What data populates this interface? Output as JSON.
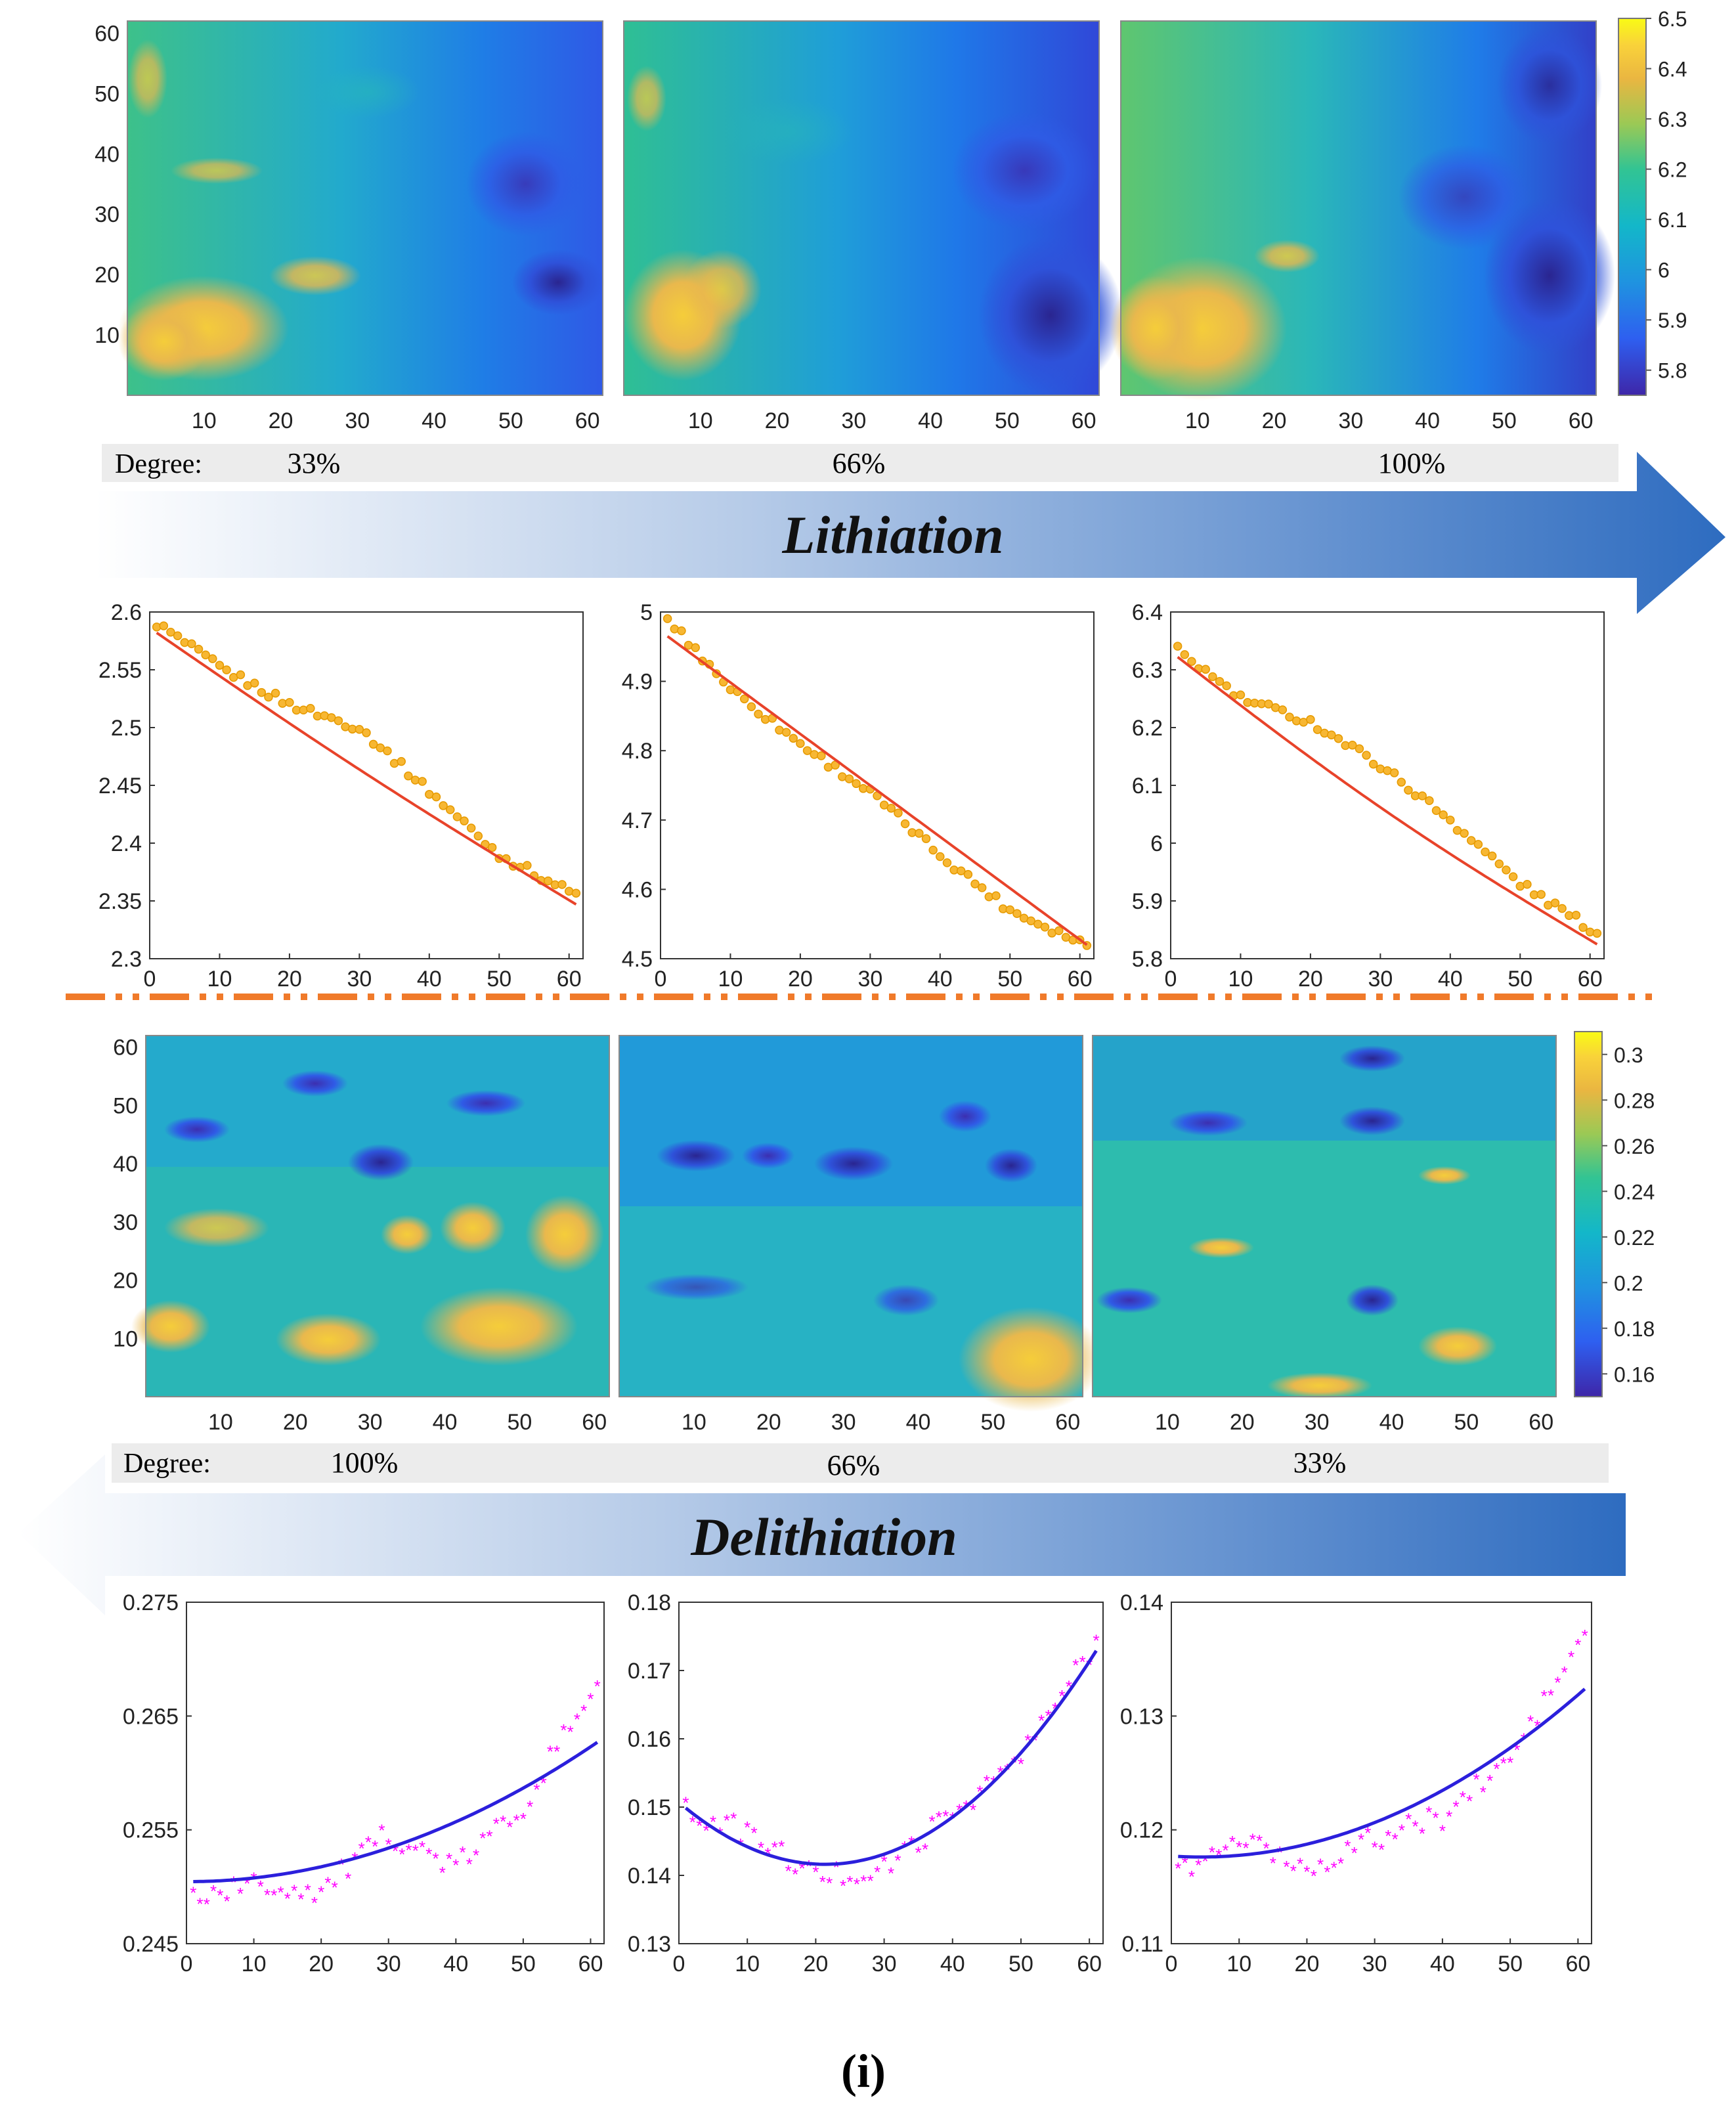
{
  "lithiation": {
    "degree_label": "Degree:",
    "degrees": [
      "33%",
      "66%",
      "100%"
    ],
    "banner": "Lithiation",
    "colorbar": {
      "ticks": [
        "6.5",
        "6.4",
        "6.3",
        "6.2",
        "6.1",
        "6",
        "5.9",
        "5.8"
      ],
      "min": 5.75,
      "max": 6.5
    },
    "map_ticks": {
      "x": [
        "10",
        "20",
        "30",
        "40",
        "50",
        "60"
      ],
      "y": [
        "60",
        "50",
        "40",
        "30",
        "20",
        "10"
      ]
    }
  },
  "delithiation": {
    "degree_label": "Degree:",
    "degrees": [
      "100%",
      "66%",
      "33%"
    ],
    "banner": "Delithiation",
    "colorbar": {
      "ticks": [
        "0.3",
        "0.28",
        "0.26",
        "0.24",
        "0.22",
        "0.2",
        "0.18",
        "0.16"
      ],
      "min": 0.15,
      "max": 0.31
    },
    "map_ticks": {
      "x": [
        "10",
        "20",
        "30",
        "40",
        "50",
        "60"
      ],
      "y": [
        "60",
        "50",
        "40",
        "30",
        "20",
        "10"
      ]
    }
  },
  "caption": "(i)",
  "colors": {
    "line_fit": "#e8432a",
    "points_lith": "#f2a900",
    "line_delith": "#2b1fdc",
    "points_delith": "#ff00ff",
    "arrow": "#3570c0",
    "separator": "#f07a2a"
  },
  "chart_data": [
    {
      "type": "scatter",
      "panel": "lithiation-33",
      "x": [
        1,
        10,
        20,
        30,
        40,
        50,
        61
      ],
      "y": [
        2.59,
        2.552,
        2.52,
        2.5,
        2.445,
        2.39,
        2.355
      ],
      "fit": {
        "start": 2.582,
        "end": 2.347,
        "curve": 0.02
      },
      "xlim": [
        0,
        62
      ],
      "ylim": [
        2.3,
        2.6
      ],
      "xticks": [
        "0",
        "10",
        "20",
        "30",
        "40",
        "50",
        "60"
      ],
      "yticks": [
        "2.6",
        "2.55",
        "2.5",
        "2.45",
        "2.4",
        "2.35",
        "2.3"
      ]
    },
    {
      "type": "scatter",
      "panel": "lithiation-66",
      "x": [
        1,
        10,
        20,
        30,
        40,
        50,
        61
      ],
      "y": [
        4.99,
        4.89,
        4.81,
        4.74,
        4.65,
        4.57,
        4.52
      ],
      "fit": {
        "start": 4.965,
        "end": 4.52,
        "curve": 0.0
      },
      "xlim": [
        0,
        62
      ],
      "ylim": [
        4.5,
        5.0
      ],
      "xticks": [
        "0",
        "10",
        "20",
        "30",
        "40",
        "50",
        "60"
      ],
      "yticks": [
        "5",
        "4.9",
        "4.8",
        "4.7",
        "4.6",
        "4.5"
      ]
    },
    {
      "type": "scatter",
      "panel": "lithiation-100",
      "x": [
        1,
        10,
        20,
        30,
        40,
        50,
        61
      ],
      "y": [
        6.335,
        6.25,
        6.21,
        6.135,
        6.04,
        5.93,
        5.845
      ],
      "fit": {
        "start": 6.322,
        "end": 5.825,
        "curve": 0.04
      },
      "xlim": [
        0,
        62
      ],
      "ylim": [
        5.8,
        6.4
      ],
      "xticks": [
        "0",
        "10",
        "20",
        "30",
        "40",
        "50",
        "60"
      ],
      "yticks": [
        "6.4",
        "6.3",
        "6.2",
        "6.1",
        "6",
        "5.9",
        "5.8"
      ]
    },
    {
      "type": "scatter",
      "panel": "delithiation-100",
      "x": [
        1,
        10,
        20,
        30,
        40,
        50,
        61
      ],
      "y": [
        0.249,
        0.25,
        0.2495,
        0.2545,
        0.2515,
        0.257,
        0.268
      ],
      "fit": {
        "a": 0.25045,
        "b": -6e-07,
        "c": 3.3e-06
      },
      "xlim": [
        0,
        62
      ],
      "ylim": [
        0.245,
        0.275
      ],
      "xticks": [
        "0",
        "10",
        "20",
        "30",
        "40",
        "50",
        "60"
      ],
      "yticks": [
        "0.275",
        "0.265",
        "0.255",
        "0.245"
      ]
    },
    {
      "type": "scatter",
      "panel": "delithiation-66",
      "x": [
        1,
        10,
        20,
        30,
        40,
        50,
        61
      ],
      "y": [
        0.149,
        0.146,
        0.1395,
        0.1405,
        0.149,
        0.157,
        0.174
      ],
      "fit": {
        "a": 0.1507,
        "b": -0.00085,
        "c": 1.99e-05
      },
      "xlim": [
        0,
        62
      ],
      "ylim": [
        0.13,
        0.18
      ],
      "xticks": [
        "0",
        "10",
        "20",
        "30",
        "40",
        "50",
        "60"
      ],
      "yticks": [
        "0.18",
        "0.17",
        "0.16",
        "0.15",
        "0.14",
        "0.13"
      ]
    },
    {
      "type": "scatter",
      "panel": "delithiation-33",
      "x": [
        1,
        10,
        20,
        30,
        40,
        50,
        61
      ],
      "y": [
        0.116,
        0.119,
        0.1165,
        0.119,
        0.121,
        0.126,
        0.137
      ],
      "fit": {
        "a": 0.1177,
        "b": -4e-05,
        "c": 4.6e-06
      },
      "xlim": [
        0,
        62
      ],
      "ylim": [
        0.11,
        0.14
      ],
      "xticks": [
        "0",
        "10",
        "20",
        "30",
        "40",
        "50",
        "60"
      ],
      "yticks": [
        "0.14",
        "0.13",
        "0.12",
        "0.11"
      ]
    }
  ]
}
